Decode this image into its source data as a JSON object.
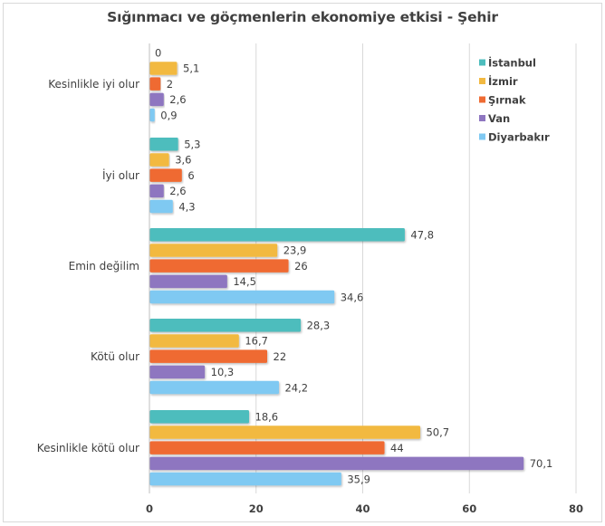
{
  "chart_data": {
    "type": "bar",
    "orientation": "horizontal",
    "title": "Sığınmacı ve göçmenlerin ekonomiye etkisi - Şehir",
    "categories": [
      "Kesinlikle iyi olur",
      "İyi olur",
      "Emin değilim",
      "Kötü olur",
      "Kesinlikle kötü olur"
    ],
    "series": [
      {
        "name": "İstanbul",
        "color": "#4dbdbd",
        "values": [
          0,
          5.3,
          47.8,
          28.3,
          18.6
        ],
        "labels": [
          "0",
          "5,3",
          "47,8",
          "28,3",
          "18,6"
        ]
      },
      {
        "name": "İzmir",
        "color": "#f2b941",
        "values": [
          5.1,
          3.6,
          23.9,
          16.7,
          50.7
        ],
        "labels": [
          "5,1",
          "3,6",
          "23,9",
          "16,7",
          "50,7"
        ]
      },
      {
        "name": "Şırnak",
        "color": "#ef6b33",
        "values": [
          2,
          6,
          26,
          22,
          44
        ],
        "labels": [
          "2",
          "6",
          "26",
          "22",
          "44"
        ]
      },
      {
        "name": "Van",
        "color": "#8e76c0",
        "values": [
          2.6,
          2.6,
          14.5,
          10.3,
          70.1
        ],
        "labels": [
          "2,6",
          "2,6",
          "14,5",
          "10,3",
          "70,1"
        ]
      },
      {
        "name": "Diyarbakır",
        "color": "#7fc9f2",
        "values": [
          0.9,
          4.3,
          34.6,
          24.2,
          35.9
        ],
        "labels": [
          "0,9",
          "4,3",
          "34,6",
          "24,2",
          "35,9"
        ]
      }
    ],
    "xlim": [
      0,
      80
    ],
    "xticks": [
      0,
      20,
      40,
      60,
      80
    ],
    "xtick_labels": [
      "0",
      "20",
      "40",
      "60",
      "80"
    ],
    "xlabel": "",
    "ylabel": "",
    "grid": true,
    "legend_position": "top-right"
  }
}
